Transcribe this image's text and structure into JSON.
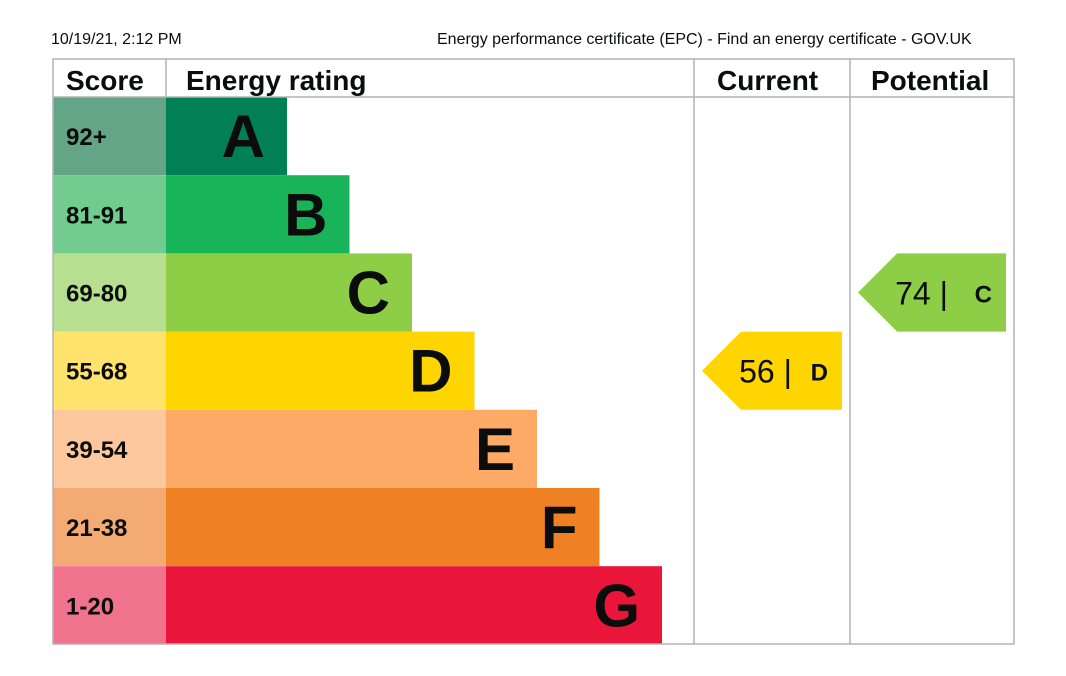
{
  "header": {
    "datetime": "10/19/21, 2:12 PM",
    "title": "Energy performance certificate (EPC) - Find an energy certificate - GOV.UK"
  },
  "chart_data": {
    "type": "bar",
    "columns": {
      "score": "Score",
      "rating": "Energy rating",
      "current": "Current",
      "potential": "Potential"
    },
    "bands": [
      {
        "letter": "A",
        "range": "92+",
        "color": "#008054",
        "score_color": "#64a585"
      },
      {
        "letter": "B",
        "range": "81-91",
        "color": "#19b459",
        "score_color": "#72cb8f"
      },
      {
        "letter": "C",
        "range": "69-80",
        "color": "#8dce46",
        "score_color": "#b6e08f"
      },
      {
        "letter": "D",
        "range": "55-68",
        "color": "#ffd500",
        "score_color": "#ffe36c"
      },
      {
        "letter": "E",
        "range": "39-54",
        "color": "#fcaa65",
        "score_color": "#fdc89e"
      },
      {
        "letter": "F",
        "range": "21-38",
        "color": "#ef8023",
        "score_color": "#f3aa73"
      },
      {
        "letter": "G",
        "range": "1-20",
        "color": "#e9153b",
        "score_color": "#ef738c"
      }
    ],
    "current": {
      "value": 56,
      "band": "D",
      "label": "56 |",
      "letter": "D",
      "color": "#ffd500"
    },
    "potential": {
      "value": 74,
      "band": "C",
      "label": "74 |",
      "letter": "C",
      "color": "#8dce46"
    }
  }
}
